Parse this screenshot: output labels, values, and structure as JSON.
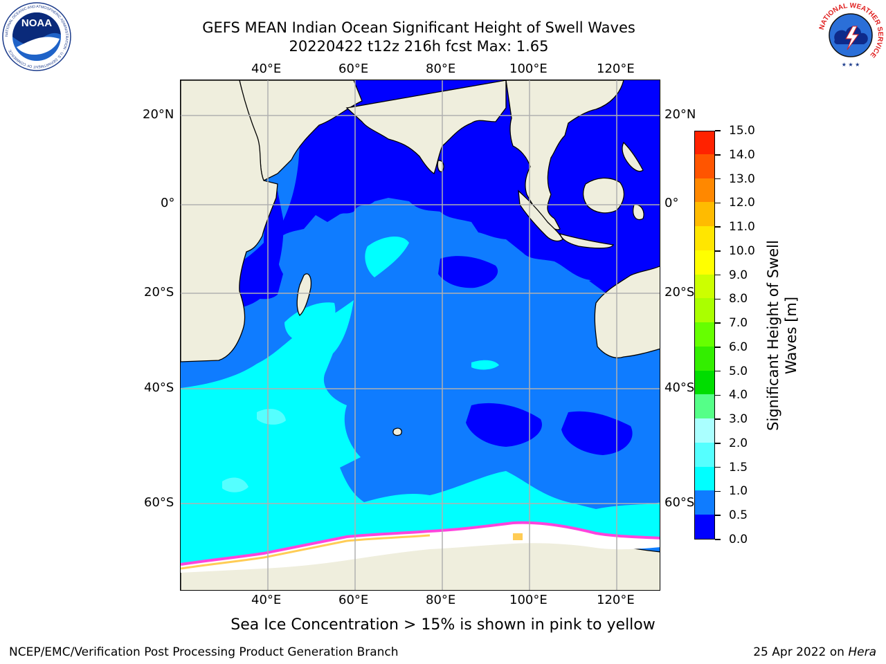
{
  "title": {
    "line1": "GEFS MEAN Indian Ocean Significant Height of Swell Waves",
    "line2": "20220422 t12z 216h fcst   Max: 1.65"
  },
  "map": {
    "lon_labels": [
      "40°E",
      "60°E",
      "80°E",
      "100°E",
      "120°E"
    ],
    "lat_labels": [
      "20°N",
      "0°",
      "20°S",
      "40°S",
      "60°S"
    ],
    "colors": {
      "ocean_0_05": "#0000ff",
      "ocean_05_10": "#0f7cff",
      "ocean_10_15": "#00ffff",
      "ocean_15_20": "#55ffff",
      "land": "#efeedd",
      "sea_ice": "#ffffff",
      "ice_edge_pink": "#ff44dd",
      "ice_edge_yellow": "#ffcc55",
      "grid": "#b0b0b0"
    }
  },
  "colorbar": {
    "title_line1": "Significant Height of Swell",
    "title_line2": "Waves [m]",
    "tick_labels": [
      "0.0",
      "0.5",
      "1.0",
      "1.5",
      "2.0",
      "3.0",
      "4.0",
      "5.0",
      "6.0",
      "7.0",
      "8.0",
      "9.0",
      "10.0",
      "11.0",
      "12.0",
      "13.0",
      "14.0",
      "15.0"
    ],
    "segment_colors": [
      "#0000ff",
      "#0f7cff",
      "#00ffff",
      "#55ffff",
      "#aaffff",
      "#55ff88",
      "#00dd00",
      "#33ee00",
      "#66ff00",
      "#aaff00",
      "#ccff00",
      "#ffff00",
      "#ffe600",
      "#ffbb00",
      "#ff8800",
      "#ff5500",
      "#ff2200"
    ]
  },
  "logos": {
    "noaa_text": "NOAA",
    "noaa_ring": "NATIONAL OCEANIC AND ATMOSPHERIC ADMINISTRATION · U.S. DEPARTMENT OF COMMERCE",
    "nws_ring": "NATIONAL WEATHER SERVICE"
  },
  "ice_note": "Sea Ice Concentration > 15% is shown in pink to yellow",
  "footer": {
    "left": "NCEP/EMC/Verification Post Processing Product Generation Branch",
    "right_date": "25 Apr 2022 on",
    "right_machine": "Hera"
  }
}
